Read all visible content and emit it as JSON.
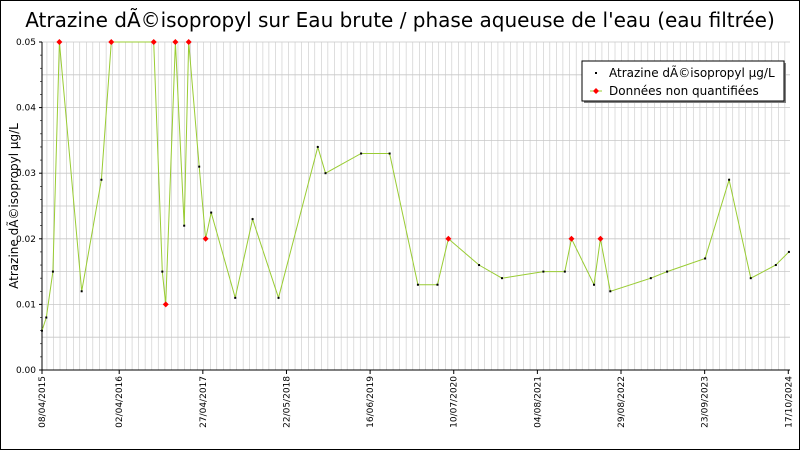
{
  "chart_data": {
    "type": "line",
    "title": "Atrazine dÃ©isopropyl sur Eau brute / phase aqueuse de l'eau (eau filtrée)",
    "ylabel": "Atrazine dÃ©isopropyl µg/L",
    "xlabel": "",
    "ylim": [
      0,
      0.05
    ],
    "xlim": [
      "2015-04-08",
      "2024-10-25"
    ],
    "y_ticks": [
      "0.00",
      "0.01",
      "0.02",
      "0.03",
      "0.04",
      "0.05"
    ],
    "x_ticks": [
      {
        "date": "2015-04-08",
        "label": "08/04/2015"
      },
      {
        "date": "2016-04-02",
        "label": "02/04/2016"
      },
      {
        "date": "2017-04-27",
        "label": "27/04/2017"
      },
      {
        "date": "2018-05-22",
        "label": "22/05/2018"
      },
      {
        "date": "2019-06-16",
        "label": "16/06/2019"
      },
      {
        "date": "2020-07-10",
        "label": "10/07/2020"
      },
      {
        "date": "2021-08-04",
        "label": "04/08/2021"
      },
      {
        "date": "2022-08-29",
        "label": "29/08/2022"
      },
      {
        "date": "2023-09-23",
        "label": "23/09/2023"
      },
      {
        "date": "2024-10-17",
        "label": "17/10/2024"
      }
    ],
    "grid": true,
    "legend_position": "top-right",
    "colors": {
      "line": "#99cc33",
      "quantified": "#000000",
      "non_quantified": "#ff0000",
      "grid": "#c8c8c8"
    },
    "series": [
      {
        "name": "Atrazine dÃ©isopropyl µg/L",
        "points": [
          {
            "x": "2015-04-08",
            "y": 0.006,
            "nq": false
          },
          {
            "x": "2015-04-28",
            "y": 0.008,
            "nq": false
          },
          {
            "x": "2015-05-29",
            "y": 0.015,
            "nq": false
          },
          {
            "x": "2015-06-28",
            "y": 0.05,
            "nq": true
          },
          {
            "x": "2015-10-10",
            "y": 0.012,
            "nq": false
          },
          {
            "x": "2016-01-10",
            "y": 0.029,
            "nq": false
          },
          {
            "x": "2016-02-25",
            "y": 0.05,
            "nq": true
          },
          {
            "x": "2016-09-10",
            "y": 0.05,
            "nq": true
          },
          {
            "x": "2016-10-20",
            "y": 0.015,
            "nq": false
          },
          {
            "x": "2016-11-05",
            "y": 0.01,
            "nq": true
          },
          {
            "x": "2016-12-20",
            "y": 0.05,
            "nq": true
          },
          {
            "x": "2017-01-30",
            "y": 0.022,
            "nq": false
          },
          {
            "x": "2017-02-20",
            "y": 0.05,
            "nq": true
          },
          {
            "x": "2017-04-10",
            "y": 0.031,
            "nq": false
          },
          {
            "x": "2017-05-10",
            "y": 0.02,
            "nq": true
          },
          {
            "x": "2017-06-05",
            "y": 0.024,
            "nq": false
          },
          {
            "x": "2017-09-25",
            "y": 0.011,
            "nq": false
          },
          {
            "x": "2017-12-15",
            "y": 0.023,
            "nq": false
          },
          {
            "x": "2018-04-15",
            "y": 0.011,
            "nq": false
          },
          {
            "x": "2018-10-15",
            "y": 0.034,
            "nq": false
          },
          {
            "x": "2018-11-20",
            "y": 0.03,
            "nq": false
          },
          {
            "x": "2019-05-05",
            "y": 0.033,
            "nq": false
          },
          {
            "x": "2019-09-15",
            "y": 0.033,
            "nq": false
          },
          {
            "x": "2020-01-25",
            "y": 0.013,
            "nq": false
          },
          {
            "x": "2020-04-25",
            "y": 0.013,
            "nq": false
          },
          {
            "x": "2020-06-15",
            "y": 0.02,
            "nq": true
          },
          {
            "x": "2020-11-05",
            "y": 0.016,
            "nq": false
          },
          {
            "x": "2021-02-20",
            "y": 0.014,
            "nq": false
          },
          {
            "x": "2021-09-01",
            "y": 0.015,
            "nq": false
          },
          {
            "x": "2021-12-10",
            "y": 0.015,
            "nq": false
          },
          {
            "x": "2022-01-10",
            "y": 0.02,
            "nq": true
          },
          {
            "x": "2022-04-25",
            "y": 0.013,
            "nq": false
          },
          {
            "x": "2022-05-25",
            "y": 0.02,
            "nq": true
          },
          {
            "x": "2022-07-10",
            "y": 0.012,
            "nq": false
          },
          {
            "x": "2023-01-15",
            "y": 0.014,
            "nq": false
          },
          {
            "x": "2023-04-01",
            "y": 0.015,
            "nq": false
          },
          {
            "x": "2023-09-25",
            "y": 0.017,
            "nq": false
          },
          {
            "x": "2024-01-15",
            "y": 0.029,
            "nq": false
          },
          {
            "x": "2024-04-25",
            "y": 0.014,
            "nq": false
          },
          {
            "x": "2024-08-20",
            "y": 0.016,
            "nq": false
          },
          {
            "x": "2024-10-20",
            "y": 0.018,
            "nq": false
          }
        ]
      }
    ],
    "legend": [
      {
        "label": "Atrazine dÃ©isopropyl µg/L",
        "marker": "quantified"
      },
      {
        "label": "Données non quantifiées",
        "marker": "non_quantified"
      }
    ]
  }
}
